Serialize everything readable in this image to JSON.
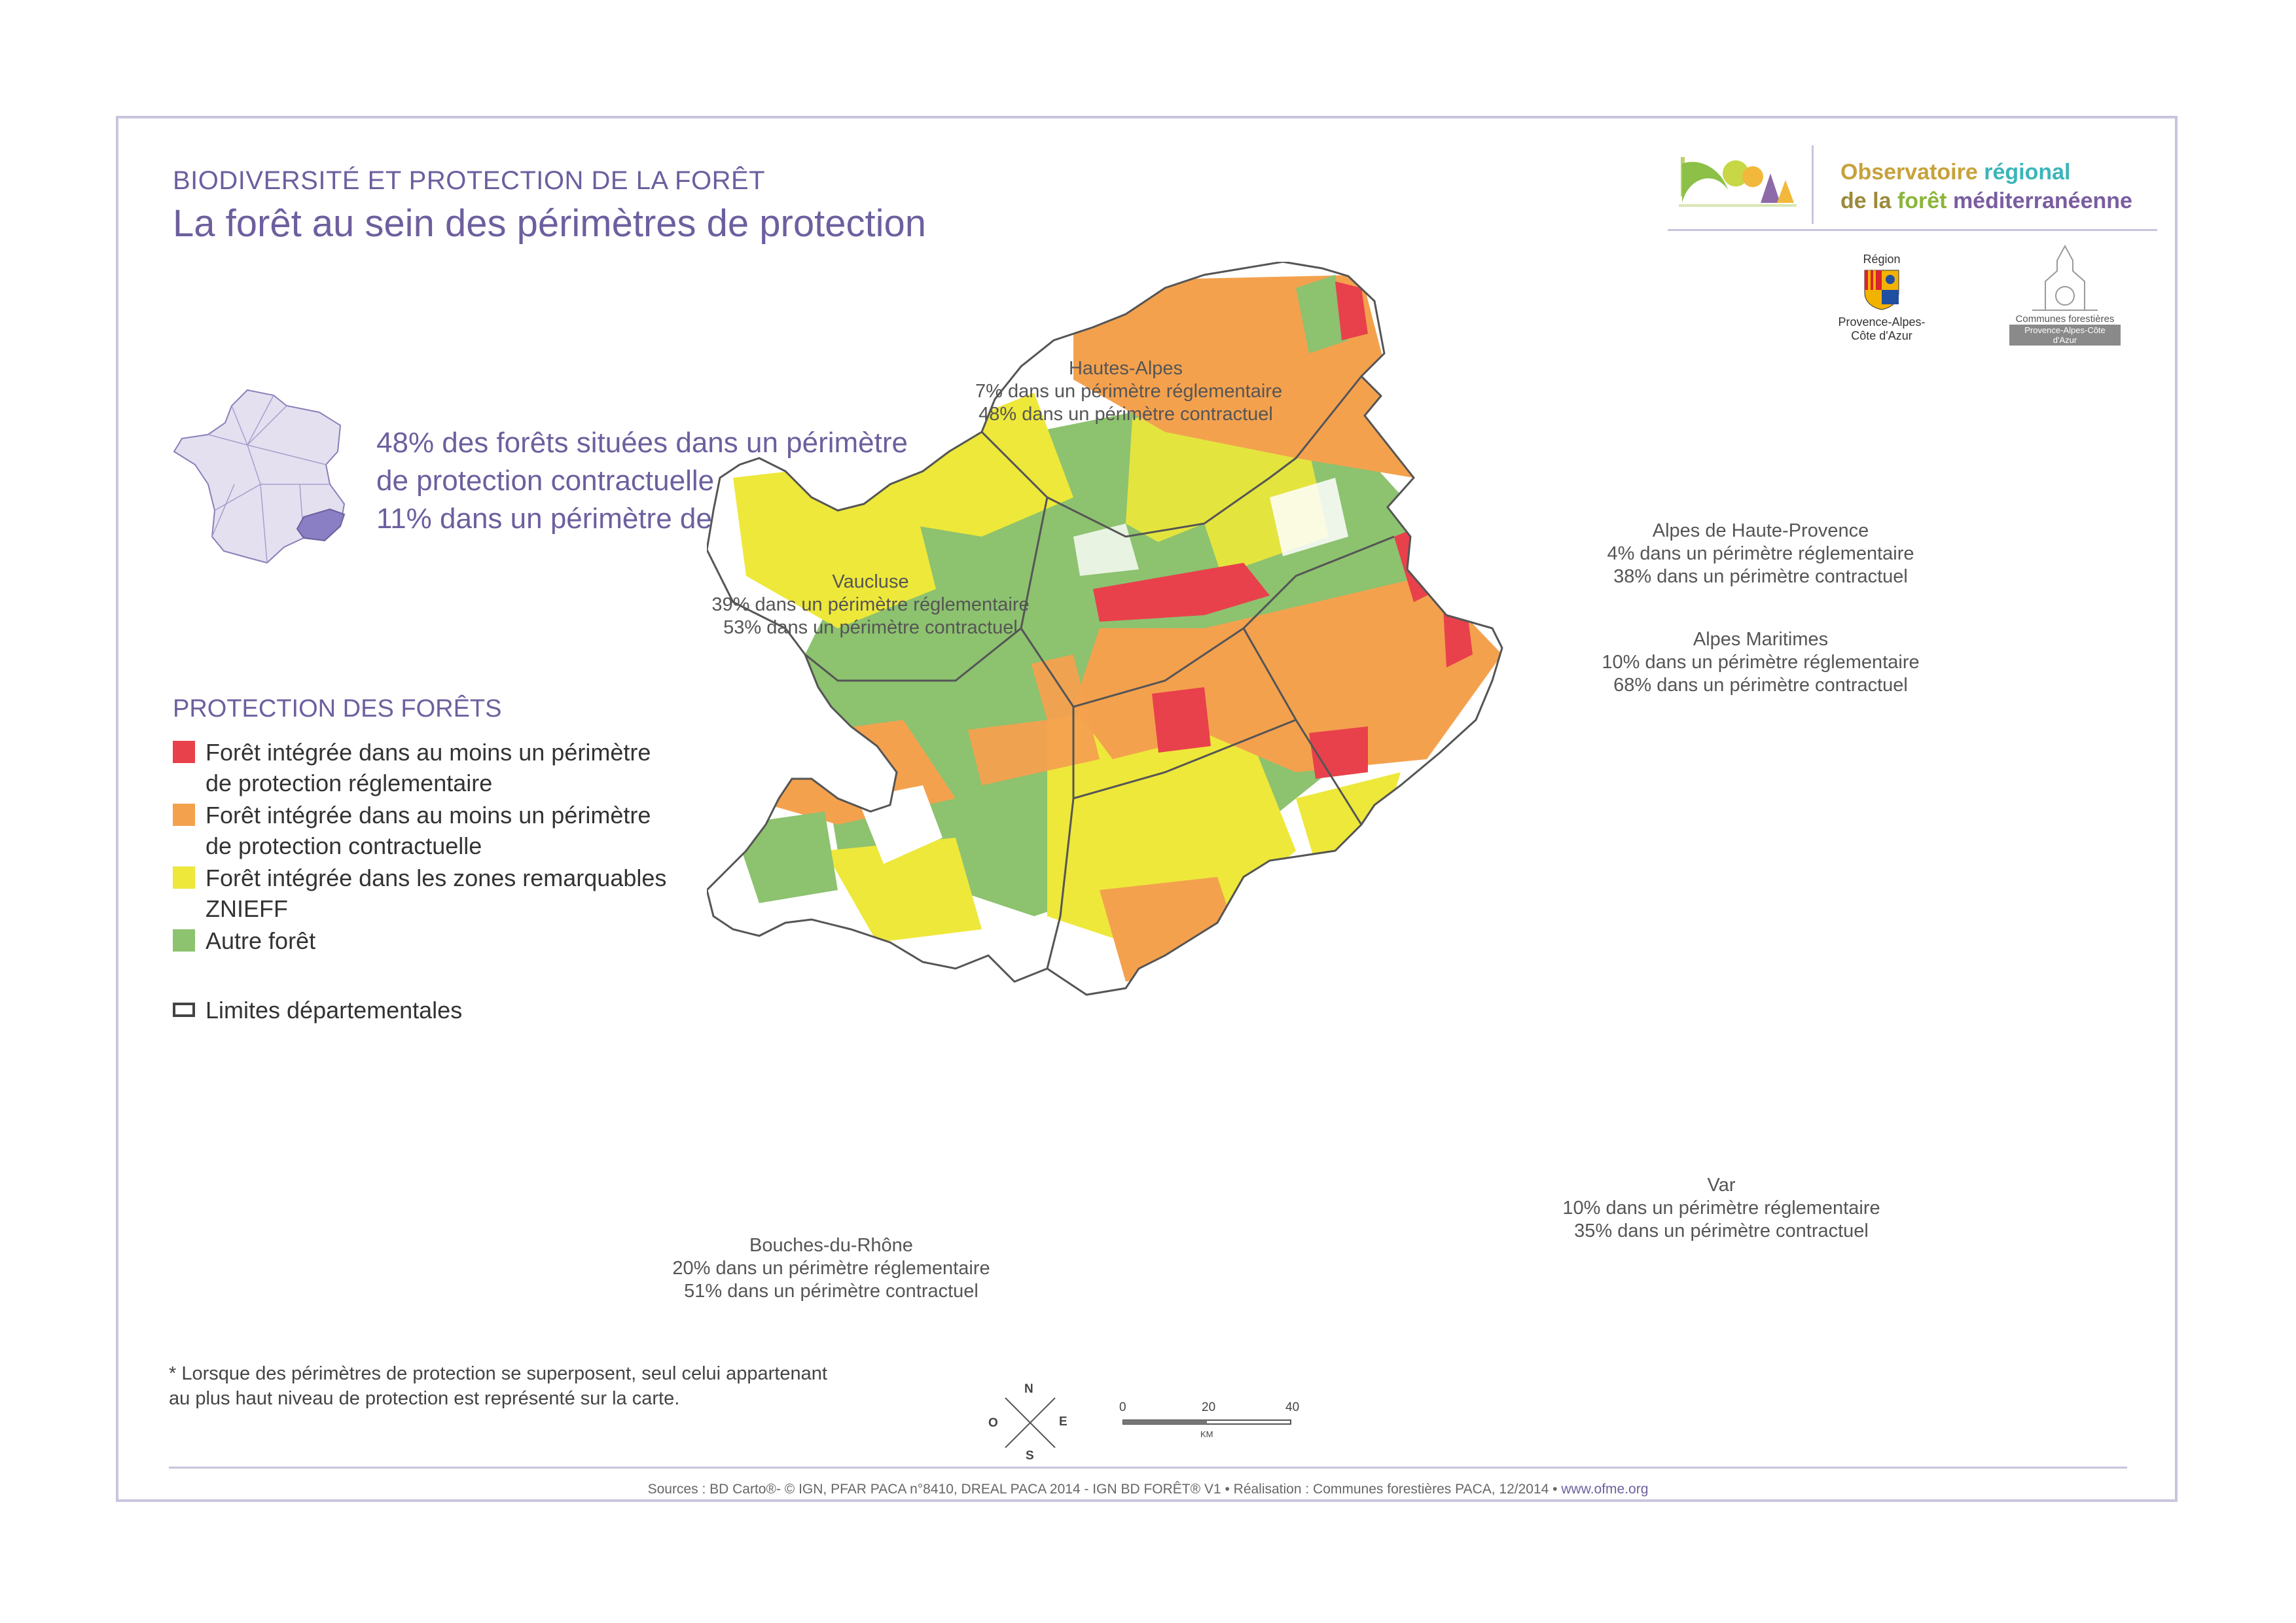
{
  "header": {
    "section": "BIODIVERSITÉ ET PROTECTION DE LA FORÊT",
    "title": "La forêt au sein des périmètres de protection"
  },
  "branding": {
    "observatory_line1_a": "Observatoire",
    "observatory_line1_b": "régional",
    "observatory_line2_a": "de la",
    "observatory_line2_b": "forêt",
    "observatory_line2_c": "méditerranéenne",
    "region_label": "Région",
    "region_name": "Provence-Alpes-Côte d'Azur",
    "communes_label": "Communes forestières",
    "communes_sub": "Provence-Alpes-Côte d'Azur"
  },
  "stats": [
    "48% des forêts situées dans un périmètre",
    "de protection contractuelle",
    "11% dans un périmètre de protection réglementaire"
  ],
  "legend": {
    "title": "PROTECTION DES FORÊTS",
    "items": [
      {
        "line1": "Forêt intégrée dans au moins un périmètre",
        "line2": "de protection réglementaire",
        "color": "#e8414b"
      },
      {
        "line1": "Forêt intégrée dans au moins un périmètre",
        "line2": "de protection contractuelle",
        "color": "#f4a14e"
      },
      {
        "line1": "Forêt intégrée dans les zones remarquables",
        "line2": "ZNIEFF",
        "color": "#ede83a"
      },
      {
        "line1": "Autre forêt",
        "line2": "",
        "color": "#8dc26f"
      }
    ],
    "boundary": "Limites départementales"
  },
  "departments": {
    "hautes_alpes": {
      "name": "Hautes-Alpes",
      "line1": "7% dans un périmètre réglementaire",
      "line2": "48% dans un périmètre contractuel"
    },
    "alpes_haute_provence": {
      "name": "Alpes de Haute-Provence",
      "line1": "4% dans un périmètre réglementaire",
      "line2": "38% dans un périmètre contractuel"
    },
    "vaucluse": {
      "name": "Vaucluse",
      "line1": "39% dans un périmètre réglementaire",
      "line2": "53% dans un périmètre contractuel"
    },
    "alpes_maritimes": {
      "name": "Alpes Maritimes",
      "line1": "10% dans un périmètre réglementaire",
      "line2": "68% dans un périmètre contractuel"
    },
    "var": {
      "name": "Var",
      "line1": "10% dans un périmètre réglementaire",
      "line2": "35% dans un périmètre contractuel"
    },
    "bouches_du_rhone": {
      "name": "Bouches-du-Rhône",
      "line1": "20% dans un périmètre réglementaire",
      "line2": "51% dans un périmètre contractuel"
    }
  },
  "note": {
    "line1": "* Lorsque des périmètres de protection se superposent, seul celui appartenant",
    "line2": "au plus haut niveau de protection est représenté sur la carte."
  },
  "compass": {
    "n": "N",
    "s": "S",
    "e": "E",
    "o": "O"
  },
  "scale": {
    "t0": "0",
    "t1": "20",
    "t2": "40",
    "unit": "KM"
  },
  "sources": {
    "text": "Sources : BD Carto®- © IGN, PFAR PACA n°8410, DREAL PACA 2014 - IGN BD FORÊT® V1 • Réalisation : Communes forestières PACA, 12/2014 •",
    "url": "www.ofme.org"
  },
  "colors": {
    "accent": "#6d5f9e",
    "reglementaire": "#e8414b",
    "contractuel": "#f4a14e",
    "znieff": "#ede83a",
    "autre": "#8dc26f"
  }
}
